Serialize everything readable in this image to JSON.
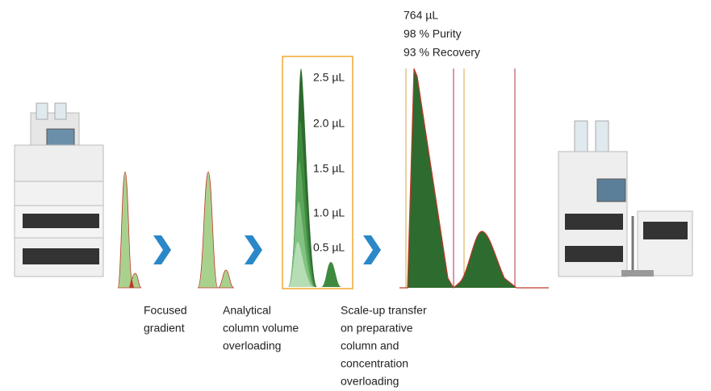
{
  "steps": [
    [
      "Focused",
      "gradient"
    ],
    [
      "Analytical",
      "column volume",
      "overloading"
    ],
    [
      "Scale-up transfer",
      "on preparative",
      "column and",
      "concentration",
      "overloading"
    ]
  ],
  "volumes": [
    "2.5 µL",
    "2.0 µL",
    "1.5 µL",
    "1.0 µL",
    "0.5 µL"
  ],
  "result": [
    "764 µL",
    "98 % Purity",
    "93 % Recovery"
  ]
}
